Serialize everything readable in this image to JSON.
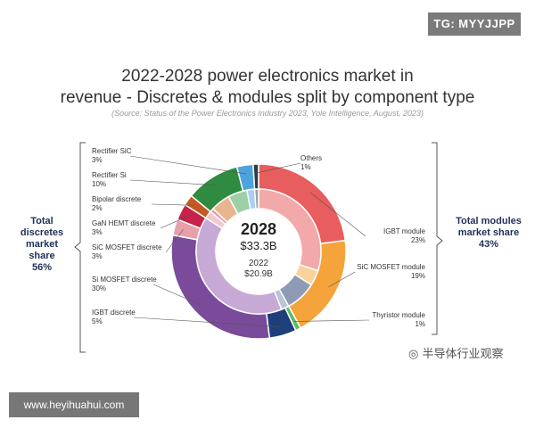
{
  "badge": "TG: MYYJJPP",
  "chart_data": {
    "type": "pie",
    "title": "2022-2028 power electronics market in revenue - Discretes & modules split by component type",
    "title_line1": "2022-2028 power electronics market in",
    "title_line2": "revenue - Discretes & modules split by component type",
    "subtitle": "(Source: Status of the Power Electronics Industry 2023, Yole Intelligence, August, 2023)",
    "center": {
      "year_outer": "2028",
      "value_outer": "$33.3B",
      "year_inner": "2022",
      "value_inner": "$20.9B"
    },
    "outer_ring": {
      "year": "2028",
      "slices": [
        {
          "name": "IGBT module",
          "value": 23,
          "color": "#e85d5d"
        },
        {
          "name": "SiC MOSFET module",
          "value": 19,
          "color": "#f4a43a"
        },
        {
          "name": "Thyristor module",
          "value": 1,
          "color": "#62b86b"
        },
        {
          "name": "IGBT discrete",
          "value": 5,
          "color": "#1f3f7a"
        },
        {
          "name": "Si MOSFET discrete",
          "value": 30,
          "color": "#7a4b9a"
        },
        {
          "name": "SiC MOSFET discrete",
          "value": 3,
          "color": "#e8a0a8"
        },
        {
          "name": "GaN HEMT discrete",
          "value": 3,
          "color": "#c8214a"
        },
        {
          "name": "Bipolar discrete",
          "value": 2,
          "color": "#c35a24"
        },
        {
          "name": "Rectifier Si",
          "value": 10,
          "color": "#2e8b3f"
        },
        {
          "name": "Rectifier SiC",
          "value": 3,
          "color": "#4da3dd"
        },
        {
          "name": "Others",
          "value": 1,
          "color": "#333a44"
        }
      ]
    },
    "inner_ring": {
      "year": "2022",
      "slices": [
        {
          "name": "IGBT module",
          "value": 30,
          "color": "#f3a9a9"
        },
        {
          "name": "SiC MOSFET module",
          "value": 4,
          "color": "#f9d39a"
        },
        {
          "name": "Thyristor module",
          "value": 8,
          "color": "#8d9bb5"
        },
        {
          "name": "IGBT discrete",
          "value": 2,
          "color": "#b8c4d8"
        },
        {
          "name": "Si MOSFET discrete",
          "value": 40,
          "color": "#c7a9d6"
        },
        {
          "name": "SiC MOSFET discrete",
          "value": 2,
          "color": "#f3c7cd"
        },
        {
          "name": "GaN HEMT discrete",
          "value": 1,
          "color": "#e49aaa"
        },
        {
          "name": "Bipolar discrete",
          "value": 5,
          "color": "#e8b58e"
        },
        {
          "name": "Rectifier Si",
          "value": 5,
          "color": "#9fcfa6"
        },
        {
          "name": "Rectifier SiC",
          "value": 2,
          "color": "#a9d0ee"
        },
        {
          "name": "Others",
          "value": 1,
          "color": "#9aa0a8"
        }
      ]
    },
    "labels": [
      {
        "name": "Rectifier SiC",
        "pct": "3%"
      },
      {
        "name": "Rectifier Si",
        "pct": "10%"
      },
      {
        "name": "Bipolar discrete",
        "pct": "2%"
      },
      {
        "name": "GaN HEMT discrete",
        "pct": "3%"
      },
      {
        "name": "SiC MOSFET discrete",
        "pct": "3%"
      },
      {
        "name": "Si MOSFET discrete",
        "pct": "30%"
      },
      {
        "name": "IGBT discrete",
        "pct": "5%"
      },
      {
        "name": "Others",
        "pct": "1%"
      },
      {
        "name": "IGBT module",
        "pct": "23%"
      },
      {
        "name": "SiC MOSFET module",
        "pct": "19%"
      },
      {
        "name": "Thyristor module",
        "pct": "1%"
      }
    ],
    "groups": {
      "discretes": {
        "line1": "Total",
        "line2": "discretes",
        "line3": "market share",
        "pct": "56%"
      },
      "modules": {
        "line1": "Total modules",
        "line2": "market share",
        "pct": "43%"
      }
    }
  },
  "watermarks": {
    "right": "半导体行业观察",
    "left": "www.heyihuahui.com"
  }
}
